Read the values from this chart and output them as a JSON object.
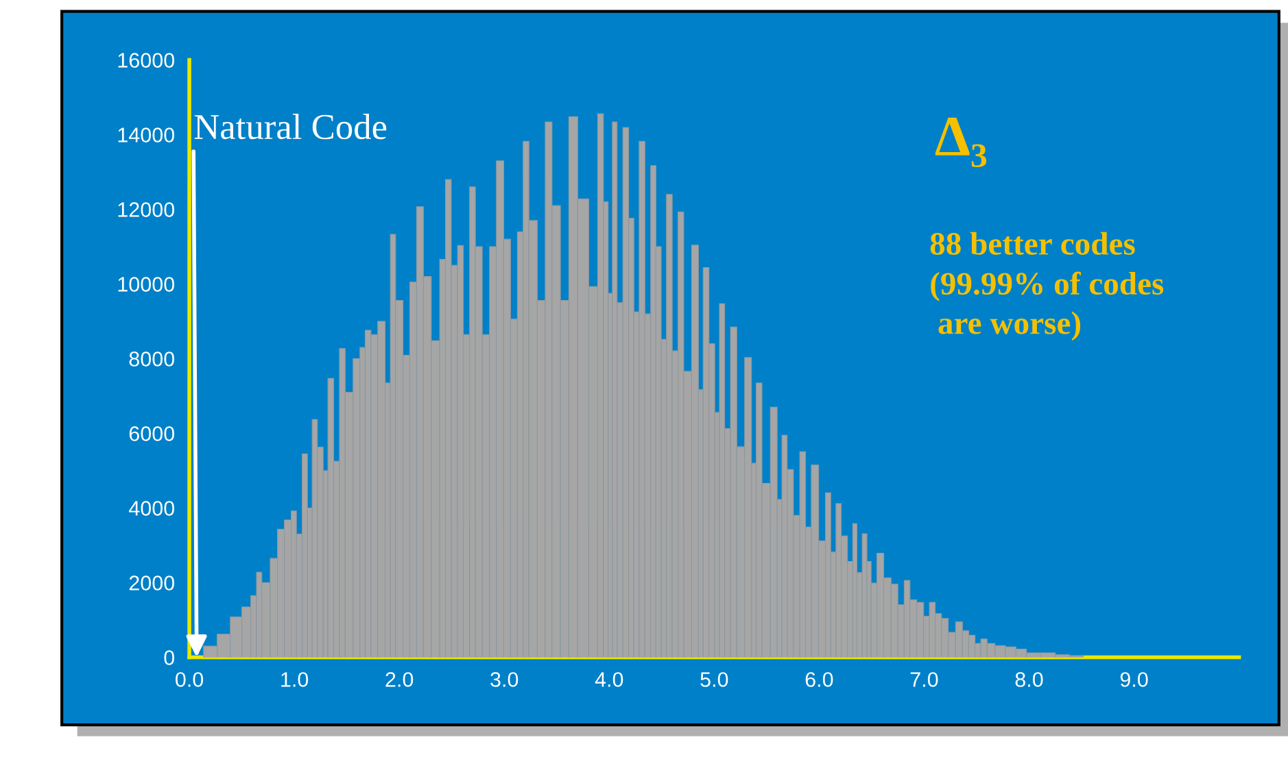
{
  "chart_data": {
    "type": "bar",
    "color": "#a6a6a6",
    "x": [
      0.2,
      0.33,
      0.45,
      0.55,
      0.62,
      0.66,
      0.72,
      0.82,
      0.86,
      0.95,
      0.99,
      1.05,
      1.1,
      1.15,
      1.19,
      1.25,
      1.3,
      1.34,
      1.41,
      1.45,
      1.52,
      1.6,
      1.65,
      1.7,
      1.76,
      1.83,
      1.9,
      1.93,
      2.0,
      2.07,
      2.13,
      2.2,
      2.26,
      2.35,
      2.42,
      2.46,
      2.53,
      2.58,
      2.64,
      2.7,
      2.75,
      2.83,
      2.89,
      2.96,
      3.03,
      3.09,
      3.16,
      3.2,
      3.27,
      3.36,
      3.42,
      3.49,
      3.58,
      3.65,
      3.75,
      3.86,
      3.92,
      3.97,
      4.01,
      4.05,
      4.1,
      4.16,
      4.21,
      4.26,
      4.31,
      4.37,
      4.42,
      4.47,
      4.52,
      4.57,
      4.63,
      4.68,
      4.74,
      4.83,
      4.87,
      4.92,
      4.98,
      5.03,
      5.07,
      5.13,
      5.18,
      5.25,
      5.33,
      5.38,
      5.42,
      5.49,
      5.58,
      5.62,
      5.67,
      5.72,
      5.79,
      5.84,
      5.9,
      5.95,
      6.04,
      6.08,
      6.14,
      6.18,
      6.24,
      6.3,
      6.34,
      6.38,
      6.44,
      6.47,
      6.52,
      6.58,
      6.65,
      6.72,
      6.78,
      6.84,
      6.89,
      6.97,
      7.02,
      7.08,
      7.13,
      7.2,
      7.26,
      7.34,
      7.39,
      7.46,
      7.51,
      7.57,
      7.63,
      7.72,
      7.83,
      7.92,
      8.03,
      8.18,
      8.32,
      8.45
    ],
    "values": [
      300,
      620,
      1080,
      1350,
      1650,
      2280,
      2000,
      2650,
      3430,
      3680,
      3920,
      3300,
      5450,
      4000,
      6370,
      5630,
      5000,
      7470,
      5250,
      8270,
      7100,
      8000,
      8300,
      8760,
      8640,
      9000,
      7350,
      11330,
      9560,
      8090,
      10050,
      12070,
      10200,
      8480,
      10660,
      12800,
      10500,
      11030,
      8640,
      12600,
      11000,
      8640,
      11000,
      13300,
      11200,
      9060,
      11400,
      13820,
      11700,
      9560,
      14340,
      12100,
      9560,
      14480,
      12280,
      9930,
      14560,
      12200,
      9750,
      14340,
      9500,
      14190,
      11760,
      9250,
      13820,
      9200,
      13170,
      11000,
      8520,
      12400,
      8210,
      11930,
      7660,
      11040,
      7170,
      10440,
      8400,
      6560,
      9470,
      6130,
      8850,
      5640,
      8030,
      5200,
      7350,
      4660,
      6700,
      4230,
      5950,
      5030,
      3800,
      5510,
      3490,
      5150,
      3120,
      4410,
      2820,
      4120,
      3250,
      2570,
      3580,
      2270,
      3310,
      2570,
      1990,
      2790,
      2130,
      1960,
      1410,
      2060,
      1540,
      1470,
      1100,
      1470,
      1170,
      1040,
      670,
      950,
      710,
      590,
      370,
      490,
      370,
      310,
      280,
      220,
      120,
      120,
      70,
      40
    ],
    "xlim": [
      0,
      10
    ],
    "xticks": [
      {
        "value": 0,
        "label": "0.0"
      },
      {
        "value": 1,
        "label": "1.0"
      },
      {
        "value": 2,
        "label": "2.0"
      },
      {
        "value": 3,
        "label": "3.0"
      },
      {
        "value": 4,
        "label": "4.0"
      },
      {
        "value": 5,
        "label": "5.0"
      },
      {
        "value": 6,
        "label": "6.0"
      },
      {
        "value": 7,
        "label": "7.0"
      },
      {
        "value": 8,
        "label": "8.0"
      },
      {
        "value": 9,
        "label": "9.0"
      }
    ],
    "ylim": [
      0,
      16000
    ],
    "yticks": [
      0,
      2000,
      4000,
      6000,
      8000,
      10000,
      12000,
      14000,
      16000
    ],
    "grid": false,
    "legend": false,
    "annotations": [
      {
        "text": "Natural Code",
        "x": 0.07,
        "y": 0
      },
      "Δ₃",
      "88 better codes\n(99.99% of codes\n are worse)"
    ]
  }
}
